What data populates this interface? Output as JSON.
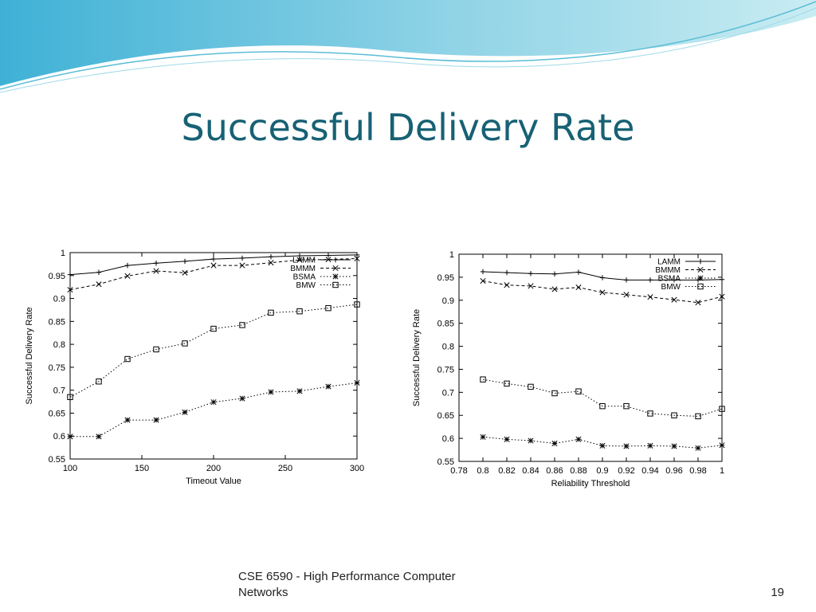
{
  "slide": {
    "title": "Successful Delivery Rate",
    "footer_text": "CSE 6590 - High Performance Computer Networks",
    "page_number": "19",
    "accent_color": "#176174"
  },
  "chart_data": [
    {
      "type": "line",
      "xlabel": "Timeout Value",
      "ylabel": "Successful Delivery Rate",
      "xlim": [
        100,
        300
      ],
      "ylim": [
        0.55,
        1
      ],
      "x_ticks": [
        "100",
        "150",
        "200",
        "250",
        "300"
      ],
      "y_ticks": [
        "0.55",
        "0.6",
        "0.65",
        "0.7",
        "0.75",
        "0.8",
        "0.85",
        "0.9",
        "0.95",
        "1"
      ],
      "legend_position": "top-right",
      "x": [
        100,
        120,
        140,
        160,
        180,
        200,
        220,
        240,
        260,
        280,
        300
      ],
      "series": [
        {
          "name": "LAMM",
          "marker": "plus",
          "line": "solid",
          "values": [
            0.952,
            0.957,
            0.972,
            0.977,
            0.981,
            0.986,
            0.988,
            0.991,
            0.993,
            0.994,
            0.995
          ]
        },
        {
          "name": "BMMM",
          "marker": "cross",
          "line": "dashed",
          "values": [
            0.919,
            0.931,
            0.949,
            0.96,
            0.956,
            0.972,
            0.972,
            0.978,
            0.984,
            0.985,
            0.987
          ]
        },
        {
          "name": "BSMA",
          "marker": "asterisk",
          "line": "dotted",
          "values": [
            0.599,
            0.599,
            0.635,
            0.635,
            0.652,
            0.674,
            0.682,
            0.696,
            0.698,
            0.708,
            0.716
          ]
        },
        {
          "name": "BMW",
          "marker": "square",
          "line": "dotted",
          "values": [
            0.685,
            0.719,
            0.768,
            0.789,
            0.802,
            0.834,
            0.842,
            0.869,
            0.872,
            0.879,
            0.887
          ]
        }
      ]
    },
    {
      "type": "line",
      "xlabel": "Reliability Threshold",
      "ylabel": "Successful Delivery Rate",
      "xlim": [
        0.78,
        1
      ],
      "ylim": [
        0.55,
        1
      ],
      "x_ticks": [
        "0.78",
        "0.8",
        "0.82",
        "0.84",
        "0.86",
        "0.88",
        "0.9",
        "0.92",
        "0.94",
        "0.96",
        "0.98",
        "1"
      ],
      "y_ticks": [
        "0.55",
        "0.6",
        "0.65",
        "0.7",
        "0.75",
        "0.8",
        "0.85",
        "0.9",
        "0.95",
        "1"
      ],
      "legend_position": "top-right",
      "x": [
        0.8,
        0.82,
        0.84,
        0.86,
        0.88,
        0.9,
        0.92,
        0.94,
        0.96,
        0.98,
        1.0
      ],
      "series": [
        {
          "name": "LAMM",
          "marker": "plus",
          "line": "solid",
          "values": [
            0.962,
            0.96,
            0.958,
            0.957,
            0.961,
            0.949,
            0.944,
            0.944,
            0.944,
            0.944,
            0.945
          ]
        },
        {
          "name": "BMMM",
          "marker": "cross",
          "line": "dashed",
          "values": [
            0.942,
            0.933,
            0.931,
            0.924,
            0.928,
            0.917,
            0.912,
            0.907,
            0.901,
            0.895,
            0.908
          ]
        },
        {
          "name": "BSMA",
          "marker": "asterisk",
          "line": "dotted",
          "values": [
            0.603,
            0.598,
            0.595,
            0.589,
            0.598,
            0.584,
            0.583,
            0.584,
            0.583,
            0.579,
            0.585
          ]
        },
        {
          "name": "BMW",
          "marker": "square",
          "line": "dotted",
          "values": [
            0.728,
            0.719,
            0.712,
            0.698,
            0.702,
            0.67,
            0.67,
            0.654,
            0.65,
            0.648,
            0.664
          ]
        }
      ]
    }
  ]
}
